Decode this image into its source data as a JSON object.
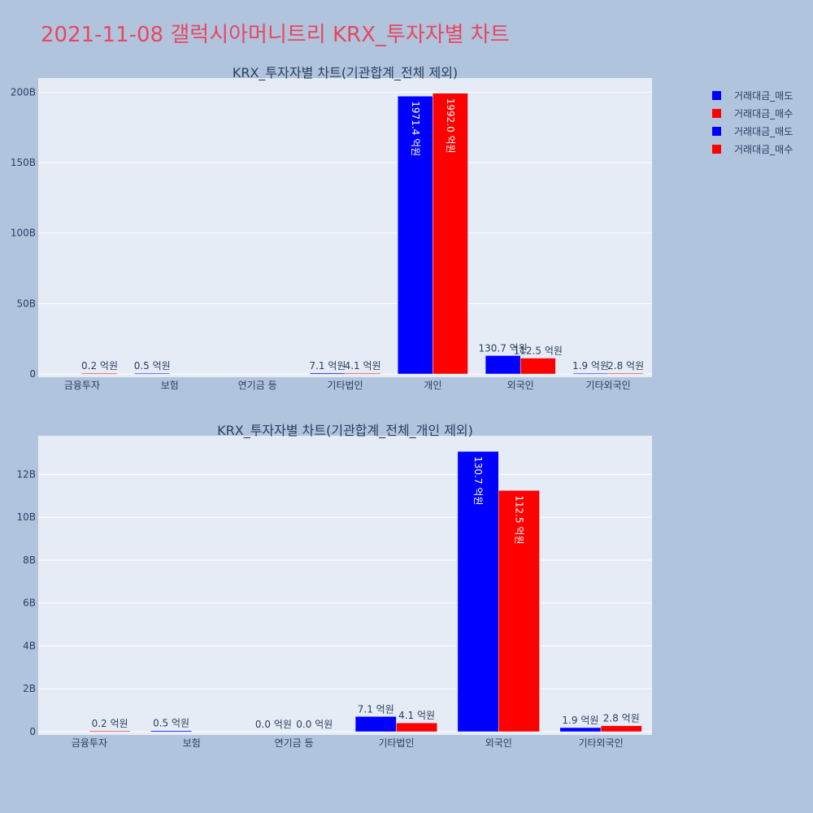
{
  "page": {
    "title": "2021-11-08 갤럭시아머니트리 KRX_투자자별 차트"
  },
  "colors": {
    "sell": "#0000ff",
    "buy": "#ff0000",
    "plot_bg": "#e5ecf6",
    "page_bg": "#b0c4de",
    "text": "#2a3f5f"
  },
  "legend": {
    "items": [
      {
        "label": "거래대금_매도",
        "color": "#0000ff"
      },
      {
        "label": "거래대금_매수",
        "color": "#ff0000"
      },
      {
        "label": "거래대금_매도",
        "color": "#0000ff"
      },
      {
        "label": "거래대금_매수",
        "color": "#ff0000"
      }
    ]
  },
  "chart_data": [
    {
      "type": "bar",
      "title": "KRX_투자자별 차트(기관합계_전체 제외)",
      "categories": [
        "금융투자",
        "보험",
        "연기금 등",
        "기타법인",
        "개인",
        "외국인",
        "기타외국인"
      ],
      "ylim": [
        0,
        210
      ],
      "yticks": [
        0,
        50,
        100,
        150,
        200
      ],
      "ytick_labels": [
        "0",
        "50B",
        "100B",
        "150B",
        "200B"
      ],
      "series": [
        {
          "name": "거래대금_매도",
          "values": [
            0.0,
            0.05,
            0.0,
            0.71,
            197.14,
            13.07,
            0.19
          ],
          "labels": [
            "",
            "0.5 억원",
            "",
            "7.1 억원",
            "1971.4 억원",
            "130.7 억원",
            "1.9 억원"
          ]
        },
        {
          "name": "거래대금_매수",
          "values": [
            0.02,
            0.0,
            0.0,
            0.41,
            199.2,
            11.25,
            0.28
          ],
          "labels": [
            "0.2 억원",
            "",
            "",
            "4.1 억원",
            "1992.0 억원",
            "112.5 억원",
            "2.8 억원"
          ]
        }
      ]
    },
    {
      "type": "bar",
      "title": "KRX_투자자별 차트(기관합계_전체_개인 제외)",
      "categories": [
        "금융투자",
        "보험",
        "연기금 등",
        "기타법인",
        "외국인",
        "기타외국인"
      ],
      "ylim": [
        0,
        13.8
      ],
      "yticks": [
        0,
        2,
        4,
        6,
        8,
        10,
        12
      ],
      "ytick_labels": [
        "0",
        "2B",
        "4B",
        "6B",
        "8B",
        "10B",
        "12B"
      ],
      "series": [
        {
          "name": "거래대금_매도",
          "values": [
            0.0,
            0.05,
            0.0,
            0.71,
            13.07,
            0.19
          ],
          "labels": [
            "",
            "0.5 억원",
            "0.0 억원",
            "7.1 억원",
            "130.7 억원",
            "1.9 억원"
          ]
        },
        {
          "name": "거래대금_매수",
          "values": [
            0.02,
            0.0,
            0.0,
            0.41,
            11.25,
            0.28
          ],
          "labels": [
            "0.2 억원",
            "",
            "0.0 억원",
            "4.1 억원",
            "112.5 억원",
            "2.8 억원"
          ]
        }
      ]
    }
  ]
}
